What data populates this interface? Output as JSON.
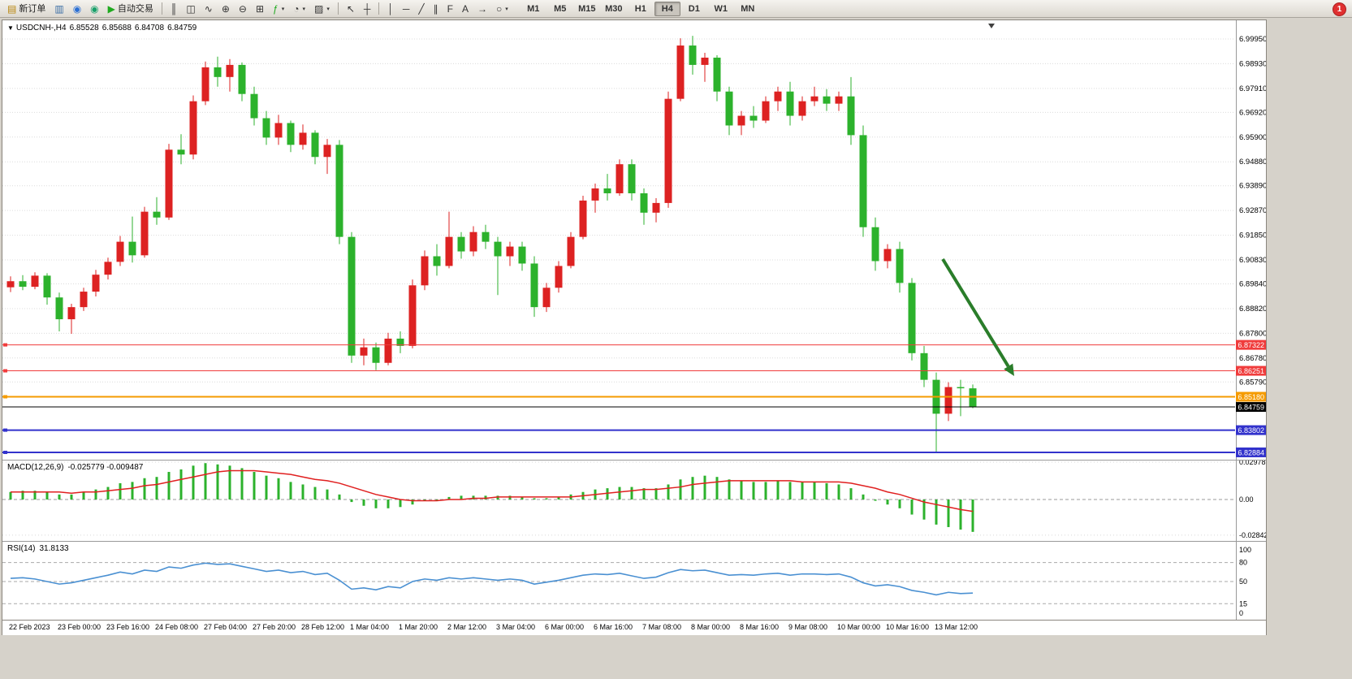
{
  "toolbar": {
    "alert_badge": "1",
    "buttons": [
      {
        "name": "new-order-button",
        "icon": "new-order-icon",
        "glyph": "▤",
        "color": "#b8860b",
        "label": "新订单"
      },
      {
        "name": "chart-window-button",
        "icon": "chart-window-icon",
        "glyph": "▥",
        "color": "#3a6ea5"
      },
      {
        "name": "mql5-community-button",
        "icon": "mql5-icon",
        "glyph": "◉",
        "color": "#2a6fd4"
      },
      {
        "name": "market-button",
        "icon": "market-icon",
        "glyph": "◉",
        "color": "#18a06a"
      },
      {
        "name": "autotrading-button",
        "icon": "autotrading-play-icon",
        "glyph": "▶",
        "color": "#1faa1f",
        "label": "自动交易"
      },
      {
        "type": "sep"
      },
      {
        "name": "bars-chart-button",
        "icon": "bars-chart-icon",
        "glyph": "║",
        "color": "#333333"
      },
      {
        "name": "candles-chart-button",
        "icon": "candlestick-icon",
        "glyph": "◫",
        "color": "#333333"
      },
      {
        "name": "line-chart-button",
        "icon": "line-chart-icon",
        "glyph": "∿",
        "color": "#333333"
      },
      {
        "name": "zoom-in-button",
        "icon": "zoom-in-icon",
        "glyph": "⊕",
        "color": "#333333"
      },
      {
        "name": "zoom-out-button",
        "icon": "zoom-out-icon",
        "glyph": "⊖",
        "color": "#333333"
      },
      {
        "name": "tile-windows-button",
        "icon": "tile-windows-icon",
        "glyph": "⊞",
        "color": "#333333"
      },
      {
        "name": "indicators-button",
        "icon": "indicators-icon",
        "glyph": "ƒ",
        "color": "#1faa1f",
        "caret": true
      },
      {
        "name": "periods-button",
        "icon": "clock-icon",
        "glyph": "◔",
        "color": "#333333",
        "caret": true
      },
      {
        "name": "templates-button",
        "icon": "template-icon",
        "glyph": "▨",
        "color": "#333333",
        "caret": true
      },
      {
        "type": "sep"
      },
      {
        "name": "cursor-button",
        "icon": "cursor-icon",
        "glyph": "↖",
        "color": "#333333"
      },
      {
        "name": "crosshair-button",
        "icon": "crosshair-icon",
        "glyph": "┼",
        "color": "#333333"
      },
      {
        "type": "sep"
      },
      {
        "name": "vertical-line-button",
        "icon": "vertical-line-icon",
        "glyph": "│",
        "color": "#333333"
      },
      {
        "name": "horizontal-line-button",
        "icon": "horizontal-line-icon",
        "glyph": "─",
        "color": "#333333"
      },
      {
        "name": "trendline-button",
        "icon": "trendline-icon",
        "glyph": "╱",
        "color": "#333333"
      },
      {
        "name": "channel-button",
        "icon": "channel-icon",
        "glyph": "∥",
        "color": "#333333"
      },
      {
        "name": "fibonacci-button",
        "icon": "fibonacci-icon",
        "glyph": "F",
        "color": "#333333"
      },
      {
        "name": "text-button",
        "icon": "text-icon",
        "glyph": "A",
        "color": "#333333"
      },
      {
        "name": "arrows-button",
        "icon": "arrow-object-icon",
        "glyph": "→",
        "color": "#333333"
      },
      {
        "name": "shapes-button",
        "icon": "ellipse-icon",
        "glyph": "○",
        "color": "#333333",
        "caret": true
      }
    ],
    "timeframes": [
      {
        "label": "M1"
      },
      {
        "label": "M5"
      },
      {
        "label": "M15"
      },
      {
        "label": "M30"
      },
      {
        "label": "H1"
      },
      {
        "label": "H4",
        "active": true
      },
      {
        "label": "D1"
      },
      {
        "label": "W1"
      },
      {
        "label": "MN"
      }
    ]
  },
  "chart": {
    "header": {
      "marker": "▼",
      "symbol": "USDCNH-,H4",
      "open": "6.85528",
      "high": "6.85688",
      "low": "6.84708",
      "close": "6.84759"
    }
  },
  "chart_data": {
    "type": "candlestick",
    "symbol": "USDCNH",
    "timeframe": "H4",
    "up_color": "#dd2222",
    "down_color": "#2cb22c",
    "price_axis_labels": [
      "6.99950",
      "6.98930",
      "6.97910",
      "6.96920",
      "6.95900",
      "6.94880",
      "6.93890",
      "6.92870",
      "6.91850",
      "6.90830",
      "6.89840",
      "6.88820",
      "6.87800",
      "6.86780",
      "6.85790"
    ],
    "time_labels": [
      "22 Feb 2023",
      "23 Feb 00:00",
      "23 Feb 16:00",
      "24 Feb 08:00",
      "27 Feb 04:00",
      "27 Feb 20:00",
      "28 Feb 12:00",
      "1 Mar 04:00",
      "1 Mar 20:00",
      "2 Mar 12:00",
      "3 Mar 04:00",
      "6 Mar 00:00",
      "6 Mar 16:00",
      "7 Mar 08:00",
      "8 Mar 00:00",
      "8 Mar 16:00",
      "9 Mar 08:00",
      "10 Mar 00:00",
      "10 Mar 16:00",
      "13 Mar 12:00"
    ],
    "candles": [
      [
        6.897,
        6.9015,
        6.895,
        6.8995
      ],
      [
        6.8995,
        6.902,
        6.8958,
        6.8972
      ],
      [
        6.8972,
        6.9032,
        6.8962,
        6.9018
      ],
      [
        6.9018,
        6.9028,
        6.8898,
        6.8928
      ],
      [
        6.8928,
        6.8948,
        6.8788,
        6.8838
      ],
      [
        6.8838,
        6.8902,
        6.8778,
        6.8888
      ],
      [
        6.8888,
        6.8968,
        6.8872,
        6.8952
      ],
      [
        6.8952,
        6.9042,
        6.8932,
        6.9022
      ],
      [
        6.9022,
        6.9092,
        6.9002,
        6.9075
      ],
      [
        6.9075,
        6.9182,
        6.9058,
        6.9158
      ],
      [
        6.9158,
        6.9262,
        6.9072,
        6.9102
      ],
      [
        6.9102,
        6.9302,
        6.9092,
        6.9282
      ],
      [
        6.9282,
        6.9342,
        6.9228,
        6.9258
      ],
      [
        6.9258,
        6.9562,
        6.9248,
        6.9538
      ],
      [
        6.9538,
        6.9602,
        6.9478,
        6.9518
      ],
      [
        6.9518,
        6.9762,
        6.9498,
        6.9738
      ],
      [
        6.9738,
        6.9902,
        6.9722,
        6.9878
      ],
      [
        6.9878,
        6.9922,
        6.9798,
        6.9838
      ],
      [
        6.9838,
        6.9912,
        6.9778,
        6.9888
      ],
      [
        6.9888,
        6.9898,
        6.9738,
        6.9768
      ],
      [
        6.9768,
        6.9798,
        6.9638,
        6.9668
      ],
      [
        6.9668,
        6.9698,
        6.9558,
        6.9588
      ],
      [
        6.9588,
        6.9682,
        6.9558,
        6.9648
      ],
      [
        6.9648,
        6.9658,
        6.9528,
        6.9558
      ],
      [
        6.9558,
        6.9642,
        6.9538,
        6.9608
      ],
      [
        6.9608,
        6.9618,
        6.9478,
        6.9508
      ],
      [
        6.9508,
        6.9582,
        6.9438,
        6.9558
      ],
      [
        6.9558,
        6.9578,
        6.9148,
        6.9178
      ],
      [
        6.9178,
        6.9198,
        6.8658,
        6.8688
      ],
      [
        6.8688,
        6.8758,
        6.8648,
        6.8722
      ],
      [
        6.8722,
        6.8742,
        6.8628,
        6.8658
      ],
      [
        6.8658,
        6.8782,
        6.8648,
        6.8758
      ],
      [
        6.8758,
        6.8788,
        6.8698,
        6.8728
      ],
      [
        6.8728,
        6.9002,
        6.8718,
        6.8978
      ],
      [
        6.8978,
        6.9122,
        6.8958,
        6.9098
      ],
      [
        6.9098,
        6.9148,
        6.9018,
        6.9058
      ],
      [
        6.9058,
        6.9282,
        6.9048,
        6.9178
      ],
      [
        6.9178,
        6.9198,
        6.9088,
        6.9118
      ],
      [
        6.9118,
        6.9222,
        6.9098,
        6.9198
      ],
      [
        6.9198,
        6.9228,
        6.9128,
        6.9158
      ],
      [
        6.9158,
        6.9178,
        6.8938,
        6.9098
      ],
      [
        6.9098,
        6.9158,
        6.9058,
        6.9138
      ],
      [
        6.9138,
        6.9158,
        6.9038,
        6.9068
      ],
      [
        6.9068,
        6.9098,
        6.8848,
        6.8888
      ],
      [
        6.8888,
        6.8988,
        6.8868,
        6.8968
      ],
      [
        6.8968,
        6.9078,
        6.8948,
        6.9058
      ],
      [
        6.9058,
        6.9198,
        6.9048,
        6.9178
      ],
      [
        6.9178,
        6.9348,
        6.9168,
        6.9328
      ],
      [
        6.9328,
        6.9398,
        6.9278,
        6.9378
      ],
      [
        6.9378,
        6.9438,
        6.9328,
        6.9358
      ],
      [
        6.9358,
        6.9498,
        6.9348,
        6.9478
      ],
      [
        6.9478,
        6.9498,
        6.9328,
        6.9358
      ],
      [
        6.9358,
        6.9378,
        6.9228,
        6.9278
      ],
      [
        6.9278,
        6.9338,
        6.9238,
        6.9318
      ],
      [
        6.9318,
        6.9778,
        6.9298,
        6.9748
      ],
      [
        6.9748,
        6.9998,
        6.9738,
        6.9968
      ],
      [
        6.9968,
        7.0008,
        6.9848,
        6.9888
      ],
      [
        6.9888,
        6.9938,
        6.9818,
        6.9918
      ],
      [
        6.9918,
        6.9928,
        6.9738,
        6.9778
      ],
      [
        6.9778,
        6.9798,
        6.9598,
        6.9638
      ],
      [
        6.9638,
        6.9698,
        6.9598,
        6.9678
      ],
      [
        6.9678,
        6.9718,
        6.9628,
        6.9658
      ],
      [
        6.9658,
        6.9758,
        6.9648,
        6.9738
      ],
      [
        6.9738,
        6.9798,
        6.9698,
        6.9778
      ],
      [
        6.9778,
        6.9818,
        6.9638,
        6.9678
      ],
      [
        6.9678,
        6.9758,
        6.9658,
        6.9738
      ],
      [
        6.9738,
        6.9798,
        6.9718,
        6.9758
      ],
      [
        6.9758,
        6.9788,
        6.9698,
        6.9728
      ],
      [
        6.9728,
        6.9778,
        6.9698,
        6.9758
      ],
      [
        6.9758,
        6.9838,
        6.9558,
        6.9598
      ],
      [
        6.9598,
        6.9638,
        6.9178,
        6.9218
      ],
      [
        6.9218,
        6.9258,
        6.9038,
        6.9078
      ],
      [
        6.9078,
        6.9148,
        6.9048,
        6.9128
      ],
      [
        6.9128,
        6.9158,
        6.8948,
        6.8988
      ],
      [
        6.8988,
        6.9008,
        6.8668,
        6.8698
      ],
      [
        6.8698,
        6.8728,
        6.8558,
        6.8588
      ],
      [
        6.8588,
        6.8618,
        6.8288,
        6.8448
      ],
      [
        6.8448,
        6.8578,
        6.8418,
        6.8558
      ],
      [
        6.8558,
        6.8588,
        6.8438,
        6.8553
      ],
      [
        6.85528,
        6.85688,
        6.84708,
        6.84759
      ]
    ],
    "price_lines": [
      {
        "name": "resistance-line-1",
        "price": 6.87322,
        "label": "6.87322",
        "color": "#f03c3c",
        "width": 1,
        "handle": true
      },
      {
        "name": "resistance-line-2",
        "price": 6.86251,
        "label": "6.86251",
        "color": "#f03c3c",
        "width": 1,
        "handle": true
      },
      {
        "name": "pivot-line",
        "price": 6.8518,
        "label": "6.85180",
        "color": "#f59b00",
        "width": 2,
        "handle": true
      },
      {
        "name": "bid-price",
        "price": 6.84759,
        "label": "6.84759",
        "color": "#000000",
        "width": 1,
        "handle": false
      },
      {
        "name": "support-line-1",
        "price": 6.83802,
        "label": "6.83802",
        "color": "#3232cc",
        "width": 2,
        "handle": true
      },
      {
        "name": "support-line-2",
        "price": 6.82884,
        "label": "6.82884",
        "color": "#3232cc",
        "width": 2,
        "handle": true
      }
    ],
    "annotation_arrow": {
      "from": [
        1158,
        294
      ],
      "to": [
        1246,
        438
      ],
      "color": "#2a7d2a"
    },
    "macd": {
      "label": "MACD(12,26,9)",
      "values_label": "-0.025779 -0.009487",
      "hist_color": "#2cb22c",
      "signal_color": "#e02020",
      "axis": [
        "0.029785",
        "0.00",
        "-0.028425"
      ],
      "histogram": [
        0.006,
        0.007,
        0.007,
        0.006,
        0.004,
        0.004,
        0.006,
        0.008,
        0.01,
        0.013,
        0.014,
        0.017,
        0.018,
        0.022,
        0.024,
        0.027,
        0.029,
        0.028,
        0.027,
        0.025,
        0.022,
        0.019,
        0.017,
        0.014,
        0.012,
        0.01,
        0.008,
        0.004,
        -0.002,
        -0.005,
        -0.007,
        -0.007,
        -0.006,
        -0.004,
        -0.001,
        0.0,
        0.002,
        0.003,
        0.003,
        0.003,
        0.003,
        0.003,
        0.002,
        0.001,
        0.001,
        0.002,
        0.004,
        0.006,
        0.008,
        0.009,
        0.01,
        0.01,
        0.009,
        0.009,
        0.012,
        0.016,
        0.018,
        0.019,
        0.018,
        0.016,
        0.015,
        0.014,
        0.014,
        0.015,
        0.014,
        0.014,
        0.014,
        0.013,
        0.012,
        0.009,
        0.004,
        -0.001,
        -0.004,
        -0.007,
        -0.012,
        -0.016,
        -0.02,
        -0.022,
        -0.024,
        -0.0258
      ],
      "signal": [
        0.006,
        0.006,
        0.006,
        0.006,
        0.006,
        0.005,
        0.006,
        0.006,
        0.007,
        0.008,
        0.009,
        0.011,
        0.012,
        0.014,
        0.016,
        0.018,
        0.02,
        0.022,
        0.023,
        0.023,
        0.023,
        0.022,
        0.021,
        0.02,
        0.018,
        0.016,
        0.015,
        0.013,
        0.01,
        0.007,
        0.004,
        0.002,
        0.0,
        -0.001,
        -0.001,
        -0.001,
        0.0,
        0.0,
        0.001,
        0.001,
        0.002,
        0.002,
        0.002,
        0.002,
        0.002,
        0.002,
        0.002,
        0.003,
        0.004,
        0.005,
        0.006,
        0.007,
        0.008,
        0.008,
        0.009,
        0.01,
        0.012,
        0.013,
        0.014,
        0.015,
        0.015,
        0.015,
        0.015,
        0.015,
        0.015,
        0.014,
        0.014,
        0.014,
        0.014,
        0.013,
        0.011,
        0.009,
        0.006,
        0.004,
        0.001,
        -0.002,
        -0.004,
        -0.006,
        -0.008,
        -0.0095
      ]
    },
    "rsi": {
      "label": "RSI(14)",
      "value_label": "31.8133",
      "line_color": "#4a90d2",
      "levels": [
        80,
        50,
        15
      ],
      "axis": [
        "100",
        "80",
        "50",
        "15",
        "0"
      ],
      "values": [
        55,
        56,
        54,
        50,
        46,
        48,
        52,
        56,
        60,
        65,
        62,
        68,
        66,
        73,
        71,
        76,
        79,
        77,
        78,
        74,
        70,
        66,
        68,
        64,
        66,
        61,
        63,
        52,
        38,
        40,
        37,
        42,
        40,
        50,
        54,
        52,
        56,
        54,
        56,
        54,
        52,
        54,
        52,
        46,
        49,
        52,
        56,
        60,
        62,
        61,
        63,
        59,
        55,
        57,
        64,
        69,
        67,
        68,
        64,
        60,
        61,
        60,
        62,
        63,
        60,
        62,
        62,
        61,
        62,
        57,
        48,
        43,
        45,
        42,
        36,
        33,
        29,
        33,
        31,
        31.8
      ]
    }
  }
}
